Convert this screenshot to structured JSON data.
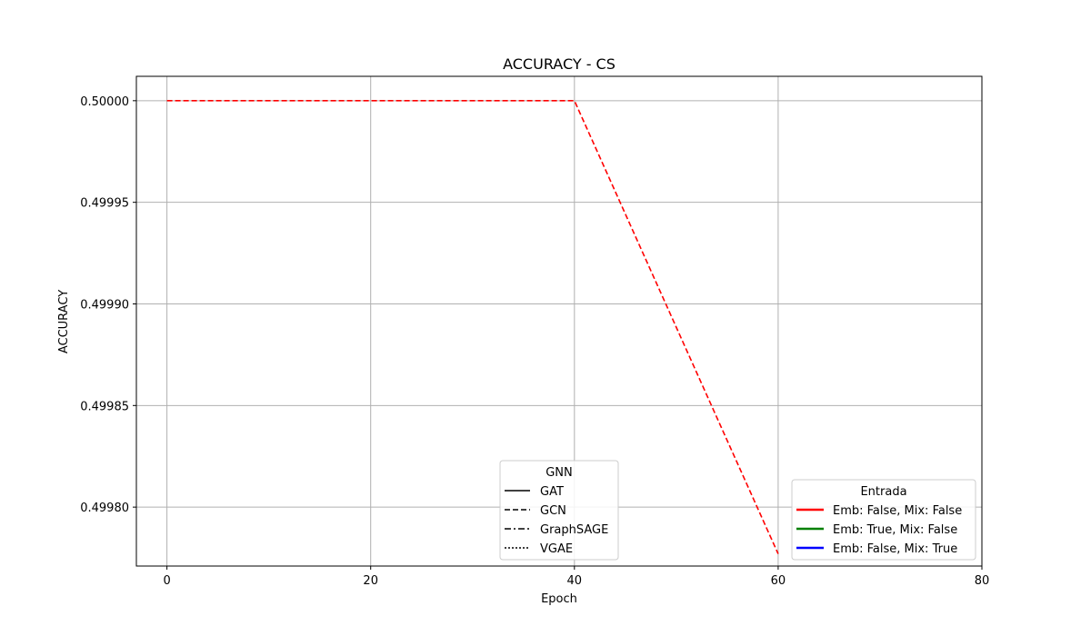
{
  "chart_data": {
    "type": "line",
    "title": "ACCURACY - CS",
    "xlabel": "Epoch",
    "ylabel": "ACCURACY",
    "xlim": [
      -3,
      80
    ],
    "ylim": [
      0.499771,
      0.500012
    ],
    "xticks": [
      0,
      20,
      40,
      60,
      80
    ],
    "xtick_labels": [
      "0",
      "20",
      "40",
      "60",
      "80"
    ],
    "yticks": [
      0.4998,
      0.49985,
      0.4999,
      0.49995,
      0.5
    ],
    "ytick_labels": [
      "0.49980",
      "0.49985",
      "0.49990",
      "0.49995",
      "0.50000"
    ],
    "grid": true,
    "series": [
      {
        "gnn": "GCN",
        "entrada": "Emb: False, Mix: False",
        "color": "#ff0000",
        "dash": "dashed",
        "x": [
          0,
          20,
          40,
          60
        ],
        "y": [
          0.5,
          0.5,
          0.5,
          0.499777
        ]
      }
    ],
    "legend_gnn": {
      "title": "GNN",
      "placement": "lower-center",
      "entries": [
        {
          "label": "GAT",
          "dash": "solid"
        },
        {
          "label": "GCN",
          "dash": "dashed"
        },
        {
          "label": "GraphSAGE",
          "dash": "dashdot"
        },
        {
          "label": "VGAE",
          "dash": "dotted"
        }
      ]
    },
    "legend_entrada": {
      "title": "Entrada",
      "placement": "lower-right",
      "entries": [
        {
          "label": "Emb: False, Mix: False",
          "color": "#ff0000"
        },
        {
          "label": "Emb: True, Mix: False",
          "color": "#008000"
        },
        {
          "label": "Emb: False, Mix: True",
          "color": "#0000ff"
        }
      ]
    }
  }
}
